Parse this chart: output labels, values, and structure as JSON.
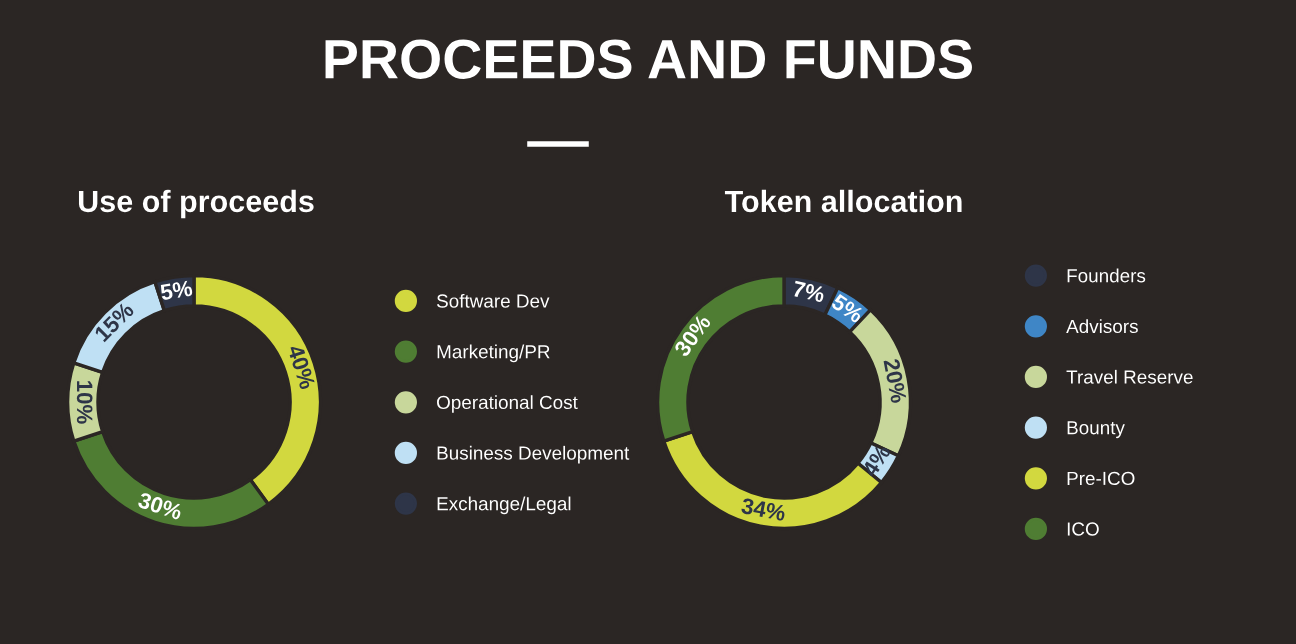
{
  "chart_data": [
    {
      "type": "donut",
      "title": "Use of proceeds",
      "annotations": [
        "PROCEEDS AND FUNDS"
      ],
      "categories": [
        "Software Dev",
        "Marketing/PR",
        "Operational Cost",
        "Business Development",
        "Exchange/Legal"
      ],
      "values": [
        40,
        30,
        10,
        15,
        5
      ],
      "value_labels": [
        "40%",
        "30%",
        "10%",
        "15%",
        "5%"
      ],
      "colors": [
        "#d2d83f",
        "#4f7d33",
        "#c8d79b",
        "#bfe0f4",
        "#2e3548"
      ],
      "legend": "right"
    },
    {
      "type": "donut",
      "title": "Token allocation",
      "categories": [
        "Founders",
        "Advisors",
        "Travel Reserve",
        "Bounty",
        "Pre-ICO",
        "ICO"
      ],
      "values": [
        7,
        5,
        20,
        4,
        34,
        30
      ],
      "value_labels": [
        "7%",
        "5%",
        "20%",
        "4%",
        "34%",
        "30%"
      ],
      "colors": [
        "#2e3548",
        "#3f86c6",
        "#c8d79b",
        "#bfe0f4",
        "#d2d83f",
        "#4f7d33"
      ],
      "legend": "right"
    }
  ]
}
